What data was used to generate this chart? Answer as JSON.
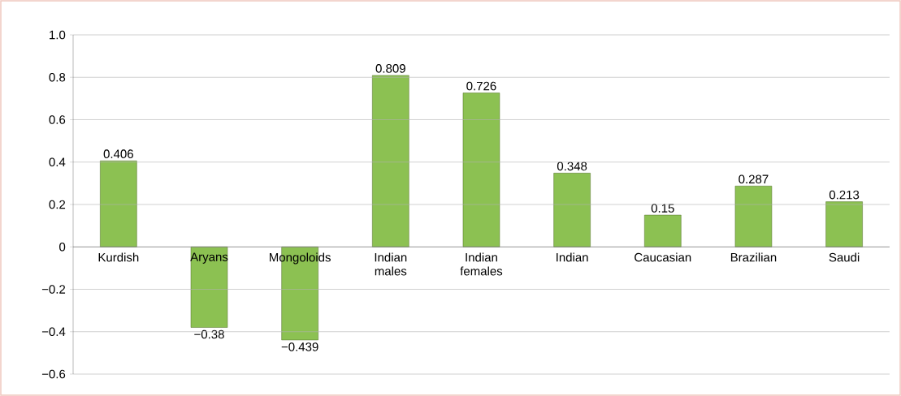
{
  "chart_data": {
    "type": "bar",
    "categories": [
      "Kurdish",
      "Aryans",
      "Mongoloids",
      "Indian males",
      "Indian females",
      "Indian",
      "Caucasian",
      "Brazilian",
      "Saudi"
    ],
    "values": [
      0.406,
      -0.38,
      -0.439,
      0.809,
      0.726,
      0.348,
      0.15,
      0.287,
      0.213
    ],
    "value_labels": [
      "0.406",
      "−0.38",
      "−0.439",
      "0.809",
      "0.726",
      "0.348",
      "0.15",
      "0.287",
      "0.213"
    ],
    "color": "#8cc152",
    "ylim": [
      -0.6,
      1.0
    ],
    "yticks": [
      {
        "value": -0.6,
        "label": "−0.6"
      },
      {
        "value": -0.4,
        "label": "−0.4"
      },
      {
        "value": -0.2,
        "label": "−0.2"
      },
      0,
      0.2,
      0.4,
      0.6,
      0.8,
      {
        "value": 1.0,
        "label": "1.0"
      }
    ],
    "grid": "y"
  }
}
